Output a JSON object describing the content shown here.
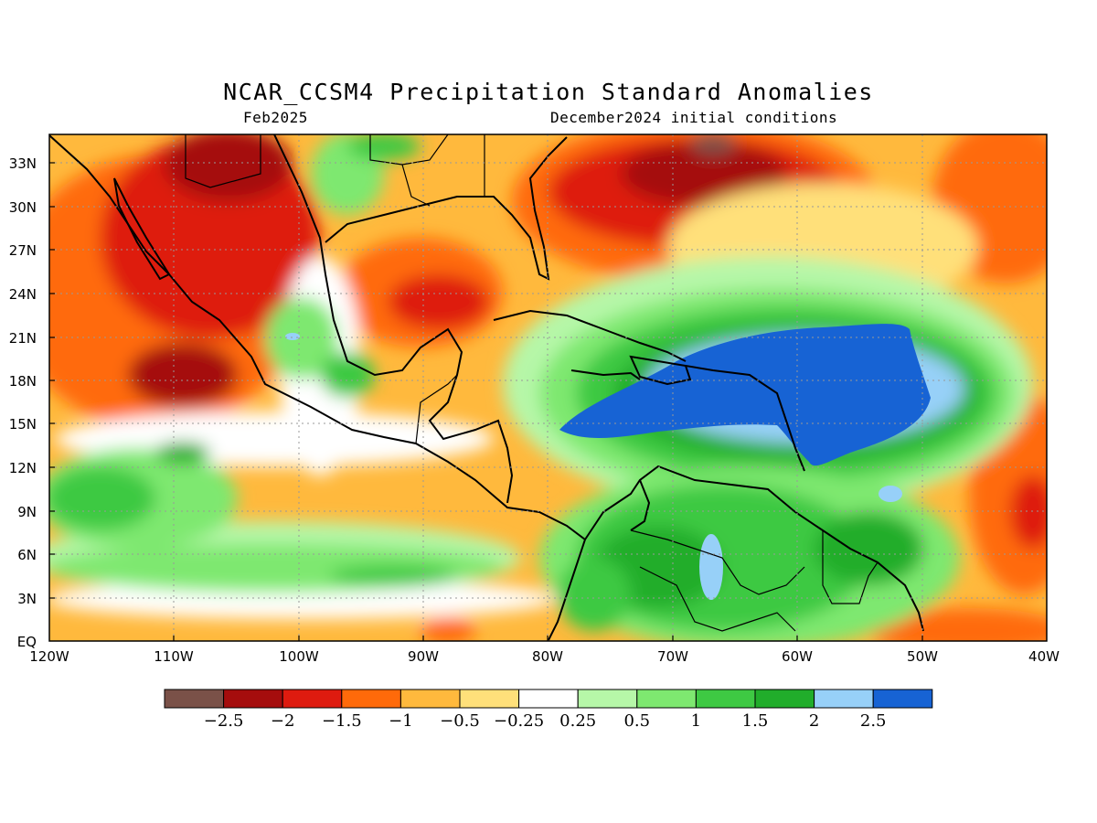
{
  "title": "NCAR_CCSM4 Precipitation Standard Anomalies",
  "valid_month": "Feb2025",
  "initial_conditions": "December2024 initial conditions",
  "map": {
    "region": "Central America / Caribbean / Gulf of Mexico",
    "lon_range": [
      -120,
      -40
    ],
    "lat_range": [
      0,
      35
    ],
    "lat_labels": [
      "33N",
      "30N",
      "27N",
      "24N",
      "21N",
      "18N",
      "15N",
      "12N",
      "9N",
      "6N",
      "3N",
      "EQ"
    ],
    "lon_labels": [
      "120W",
      "110W",
      "100W",
      "90W",
      "80W",
      "70W",
      "60W",
      "50W",
      "40W"
    ],
    "grid": "dotted"
  },
  "colorbar": {
    "colors": [
      "#7a5148",
      "#a50d0d",
      "#de1b0f",
      "#ff6a0a",
      "#ffb93d",
      "#ffe07a",
      "#ffffff",
      "#b6f7a8",
      "#7ee870",
      "#3ec943",
      "#21ad2b",
      "#97d0f8",
      "#1763d4"
    ],
    "labels": [
      "−2.5",
      "−2",
      "−1.5",
      "−1",
      "−0.5",
      "−0.25",
      "0.25",
      "0.5",
      "1",
      "1.5",
      "2",
      "2.5"
    ]
  }
}
